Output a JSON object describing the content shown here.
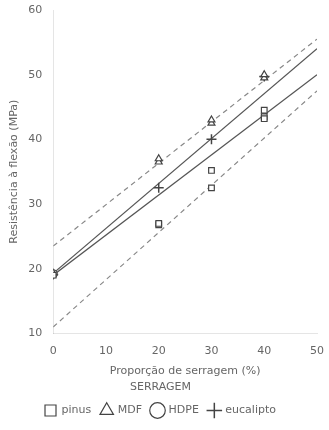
{
  "chart_data": {
    "type": "scatter",
    "xlabel": "Proporção de serragem (%)",
    "ylabel": "Resistência à flexão (MPa)",
    "xlim": [
      0,
      50
    ],
    "ylim": [
      10,
      60
    ],
    "xticks": [
      0,
      10,
      20,
      30,
      40,
      50
    ],
    "yticks": [
      10,
      20,
      30,
      40,
      50,
      60
    ],
    "grid": false,
    "legend": "bottom",
    "legend_title": "SERRAGEM",
    "series": [
      {
        "type": "line",
        "line_style": "dashed",
        "color": "#888888",
        "x": [
          0,
          50
        ],
        "values": [
          23.5,
          55.5
        ]
      },
      {
        "type": "line",
        "line_style": "solid",
        "color": "#555555",
        "x": [
          0,
          50
        ],
        "values": [
          19.3,
          54.0
        ]
      },
      {
        "type": "line",
        "line_style": "solid",
        "color": "#555555",
        "x": [
          0,
          50
        ],
        "values": [
          19.0,
          50.0
        ]
      },
      {
        "type": "line",
        "line_style": "dashed",
        "color": "#888888",
        "x": [
          0,
          50
        ],
        "values": [
          11.0,
          47.5
        ]
      },
      {
        "type": "scatter",
        "name": "pinus",
        "marker": "square",
        "color": "#444444",
        "x": [
          0,
          20,
          20,
          30,
          30,
          40,
          40,
          40
        ],
        "values": [
          19.0,
          26.8,
          27.0,
          35.2,
          32.5,
          44.5,
          43.5,
          43.2
        ]
      },
      {
        "type": "scatter",
        "name": "MDF",
        "marker": "triangle",
        "color": "#444444",
        "x": [
          0,
          20,
          20,
          30,
          30,
          40,
          40
        ],
        "values": [
          19.3,
          36.5,
          37.0,
          42.5,
          43.0,
          49.5,
          50.0
        ]
      },
      {
        "type": "scatter",
        "name": "HDPE",
        "marker": "circle",
        "color": "#444444",
        "x": [
          0
        ],
        "values": [
          19.2
        ]
      },
      {
        "type": "scatter",
        "name": "eucalipto",
        "marker": "plus",
        "color": "#444444",
        "x": [
          0,
          20,
          30,
          40
        ],
        "values": [
          19.1,
          32.5,
          40.0,
          49.7
        ]
      }
    ]
  }
}
